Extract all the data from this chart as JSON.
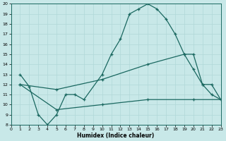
{
  "xlabel": "Humidex (Indice chaleur)",
  "bg_color": "#c8e8e8",
  "grid_color": "#b0d8d8",
  "line_color": "#1a6860",
  "xlim": [
    0,
    23
  ],
  "ylim": [
    8,
    20
  ],
  "xticks": [
    0,
    1,
    2,
    3,
    4,
    5,
    6,
    7,
    8,
    9,
    10,
    11,
    12,
    13,
    14,
    15,
    16,
    17,
    18,
    19,
    20,
    21,
    22,
    23
  ],
  "yticks": [
    8,
    9,
    10,
    11,
    12,
    13,
    14,
    15,
    16,
    17,
    18,
    19,
    20
  ],
  "line1_x": [
    1,
    2,
    3,
    4,
    5,
    6,
    7,
    8,
    10,
    11,
    12,
    13,
    14,
    15,
    16,
    17,
    18,
    19,
    20,
    21,
    22,
    23
  ],
  "line1_y": [
    13,
    11.8,
    9,
    8,
    9,
    11,
    11,
    10.5,
    13,
    15,
    16.5,
    19,
    19.5,
    20,
    19.5,
    18.5,
    17,
    15,
    13.5,
    12,
    11,
    10.5
  ],
  "line2_x": [
    1,
    5,
    10,
    15,
    19,
    20,
    21,
    22,
    23
  ],
  "line2_y": [
    12,
    11.5,
    12.5,
    14,
    15,
    15,
    12,
    12,
    10.5
  ],
  "line3_x": [
    1,
    5,
    10,
    15,
    20,
    23
  ],
  "line3_y": [
    12,
    9.5,
    10,
    10.5,
    10.5,
    10.5
  ]
}
